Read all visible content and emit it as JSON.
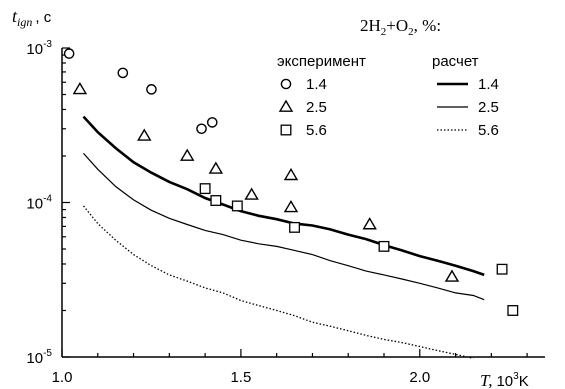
{
  "chart_data": {
    "type": "scatter",
    "title": "",
    "ylabel": "t_ign , с",
    "xlabel": "T, 10³K",
    "xlabel_prefix": "T,",
    "xlabel_unit_base": "10",
    "xlabel_unit_exp": "3",
    "xlabel_unit_suffix": "K",
    "ylabel_main": "t",
    "ylabel_sub": "ign",
    "ylabel_suffix": ", с",
    "xlim": [
      1.0,
      2.35
    ],
    "ylim": [
      1e-05,
      0.001
    ],
    "yscale": "log",
    "x_ticks": [
      {
        "value": 1.0,
        "label": "1.0"
      },
      {
        "value": 1.5,
        "label": "1.5"
      },
      {
        "value": 2.0,
        "label": "2.0"
      }
    ],
    "y_ticks": [
      {
        "value": 1e-05,
        "base": "10",
        "exp": "-5"
      },
      {
        "value": 0.0001,
        "base": "10",
        "exp": "-4"
      },
      {
        "value": 0.001,
        "base": "10",
        "exp": "-3"
      }
    ],
    "legend": {
      "title": "2H₂+O₂, %:",
      "title_parts": {
        "a": "2H",
        "a_sub": "2",
        "b": "+O",
        "b_sub": "2",
        "c": ", %:"
      },
      "experiment_header": "эксперимент",
      "calc_header": "расчет",
      "placement": "top-right"
    },
    "series": [
      {
        "name": "1.4",
        "kind": "experiment",
        "marker": "circle",
        "points": [
          [
            1.02,
            0.00092
          ],
          [
            1.17,
            0.00069
          ],
          [
            1.25,
            0.00054
          ],
          [
            1.39,
            0.0003
          ],
          [
            1.42,
            0.00033
          ]
        ]
      },
      {
        "name": "2.5",
        "kind": "experiment",
        "marker": "triangle",
        "points": [
          [
            1.05,
            0.00054
          ],
          [
            1.23,
            0.00027
          ],
          [
            1.35,
            0.0002
          ],
          [
            1.43,
            0.000165
          ],
          [
            1.53,
            0.000112
          ],
          [
            1.64,
            0.00015
          ],
          [
            1.64,
            9.3e-05
          ],
          [
            1.86,
            7.2e-05
          ],
          [
            2.09,
            3.3e-05
          ]
        ]
      },
      {
        "name": "5.6",
        "kind": "experiment",
        "marker": "square",
        "points": [
          [
            1.4,
            0.000123
          ],
          [
            1.43,
            0.000103
          ],
          [
            1.49,
            9.5e-05
          ],
          [
            1.65,
            6.9e-05
          ],
          [
            1.9,
            5.2e-05
          ],
          [
            2.23,
            3.7e-05
          ],
          [
            2.26,
            2e-05
          ]
        ]
      },
      {
        "name": "1.4",
        "kind": "calculation",
        "style": "thick",
        "points": [
          [
            1.06,
            0.00036
          ],
          [
            1.1,
            0.000285
          ],
          [
            1.15,
            0.000225
          ],
          [
            1.2,
            0.000182
          ],
          [
            1.25,
            0.000156
          ],
          [
            1.3,
            0.000136
          ],
          [
            1.35,
            0.000122
          ],
          [
            1.4,
            0.000107
          ],
          [
            1.45,
            9.7e-05
          ],
          [
            1.5,
            8.8e-05
          ],
          [
            1.55,
            8.2e-05
          ],
          [
            1.6,
            7.8e-05
          ],
          [
            1.65,
            7.3e-05
          ],
          [
            1.7,
            7.1e-05
          ],
          [
            1.75,
            6.7e-05
          ],
          [
            1.8,
            6.2e-05
          ],
          [
            1.85,
            5.8e-05
          ],
          [
            1.9,
            5.3e-05
          ],
          [
            1.95,
            4.9e-05
          ],
          [
            2.0,
            4.5e-05
          ],
          [
            2.05,
            4.2e-05
          ],
          [
            2.1,
            3.9e-05
          ],
          [
            2.15,
            3.6e-05
          ],
          [
            2.18,
            3.4e-05
          ]
        ]
      },
      {
        "name": "2.5",
        "kind": "calculation",
        "style": "thin",
        "points": [
          [
            1.06,
            0.000208
          ],
          [
            1.1,
            0.000164
          ],
          [
            1.15,
            0.000127
          ],
          [
            1.2,
            0.000104
          ],
          [
            1.25,
            8.9e-05
          ],
          [
            1.3,
            7.9e-05
          ],
          [
            1.35,
            7.2e-05
          ],
          [
            1.4,
            6.6e-05
          ],
          [
            1.45,
            6.2e-05
          ],
          [
            1.5,
            5.7e-05
          ],
          [
            1.55,
            5.4e-05
          ],
          [
            1.6,
            5.2e-05
          ],
          [
            1.65,
            4.9e-05
          ],
          [
            1.7,
            4.6e-05
          ],
          [
            1.75,
            4.2e-05
          ],
          [
            1.8,
            3.9e-05
          ],
          [
            1.85,
            3.6e-05
          ],
          [
            1.9,
            3.4e-05
          ],
          [
            1.95,
            3.2e-05
          ],
          [
            2.0,
            3e-05
          ],
          [
            2.05,
            2.8e-05
          ],
          [
            2.1,
            2.6e-05
          ],
          [
            2.15,
            2.5e-05
          ],
          [
            2.18,
            2.35e-05
          ]
        ]
      },
      {
        "name": "5.6",
        "kind": "calculation",
        "style": "dotted",
        "points": [
          [
            1.06,
            9.5e-05
          ],
          [
            1.1,
            7.3e-05
          ],
          [
            1.15,
            5.7e-05
          ],
          [
            1.2,
            4.6e-05
          ],
          [
            1.25,
            3.9e-05
          ],
          [
            1.3,
            3.4e-05
          ],
          [
            1.35,
            3.1e-05
          ],
          [
            1.4,
            2.8e-05
          ],
          [
            1.45,
            2.6e-05
          ],
          [
            1.5,
            2.32e-05
          ],
          [
            1.55,
            2.15e-05
          ],
          [
            1.6,
            2e-05
          ],
          [
            1.65,
            1.85e-05
          ],
          [
            1.7,
            1.68e-05
          ],
          [
            1.75,
            1.58e-05
          ],
          [
            1.8,
            1.48e-05
          ],
          [
            1.85,
            1.38e-05
          ],
          [
            1.9,
            1.3e-05
          ],
          [
            1.95,
            1.24e-05
          ],
          [
            2.0,
            1.17e-05
          ],
          [
            2.05,
            1.1e-05
          ],
          [
            2.1,
            1.04e-05
          ],
          [
            2.15,
            9.8e-06
          ]
        ]
      }
    ]
  }
}
